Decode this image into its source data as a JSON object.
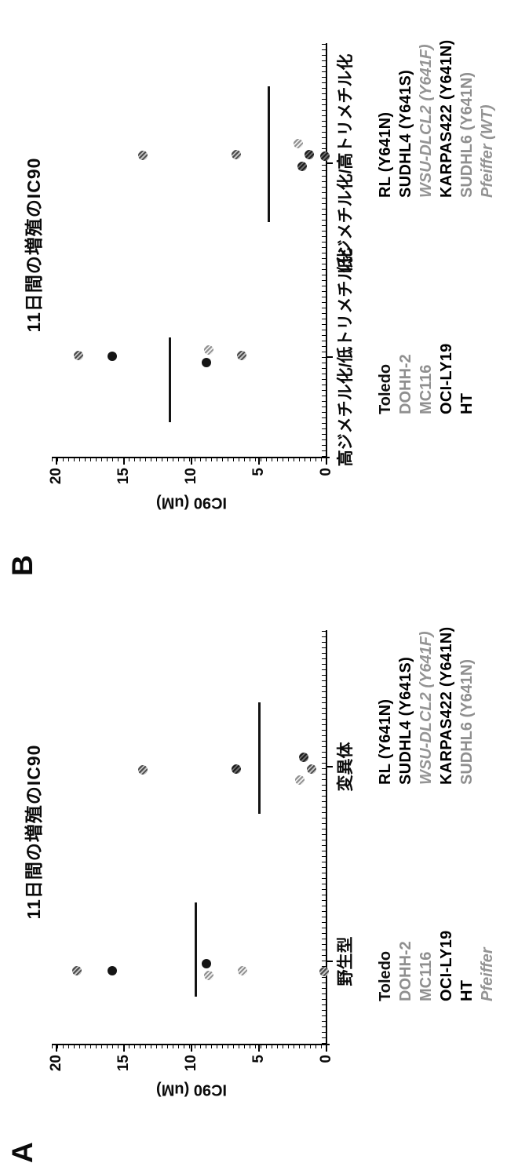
{
  "panels": [
    {
      "letter": "A"
    },
    {
      "letter": "B"
    }
  ],
  "colors": {
    "axis": "#000000",
    "marker_black": "#151515",
    "marker_gray": "#8a8a8a",
    "marker_light": "#c4c4c4",
    "legend_gray": "#8f8f8f"
  },
  "chart_data": [
    {
      "type": "scatter",
      "panel_label": "A",
      "title": "11日間の増殖のIC90",
      "ylabel": "IC90 (uM)",
      "ylim": [
        0,
        20
      ],
      "yticks": [
        0,
        5,
        10,
        15,
        20
      ],
      "grid": false,
      "groups": [
        {
          "category": "野生型",
          "mean": 9.7,
          "mean_span": [
            60,
            180
          ],
          "label_dx": 105,
          "legend_dx": 54,
          "points": [
            {
              "v": 18.5,
              "dx": 93,
              "shade": "gray"
            },
            {
              "v": 15.9,
              "dx": 93,
              "shade": "black"
            },
            {
              "v": 8.9,
              "dx": 102,
              "shade": "black"
            },
            {
              "v": 8.7,
              "dx": 87,
              "shade": "light"
            },
            {
              "v": 6.2,
              "dx": 93,
              "shade": "light"
            },
            {
              "v": 0.2,
              "dx": 92,
              "shade": "gray"
            }
          ],
          "legend": [
            {
              "text": "Toledo",
              "style": "black"
            },
            {
              "text": "DOHH-2",
              "style": "gray"
            },
            {
              "text": "MC116",
              "style": "gray"
            },
            {
              "text": "OCI-LY19",
              "style": "bold"
            },
            {
              "text": "HT",
              "style": "bold"
            },
            {
              "text": "Pfeiffer",
              "style": "italic"
            }
          ]
        },
        {
          "category": "変異体",
          "mean": 5.0,
          "mean_span": [
            293,
            435
          ],
          "label_dx": 353,
          "legend_dx": 330,
          "points": [
            {
              "v": 13.6,
              "dx": 349,
              "shade": "gray"
            },
            {
              "v": 6.7,
              "dx": 350,
              "shade": "dark"
            },
            {
              "v": 2.0,
              "dx": 336,
              "shade": "light"
            },
            {
              "v": 1.7,
              "dx": 365,
              "shade": "dark"
            },
            {
              "v": 1.1,
              "dx": 350,
              "shade": "gray"
            }
          ],
          "legend": [
            {
              "text": "RL (Y641N)",
              "style": "bold"
            },
            {
              "text": "SUDHL4 (Y641S)",
              "style": "bold"
            },
            {
              "text": "WSU-DLCL2 (Y641F)",
              "style": "italic"
            },
            {
              "text": "KARPAS422 (Y641N)",
              "style": "bold"
            },
            {
              "text": "SUDHL6 (Y641N)",
              "style": "gray"
            }
          ]
        }
      ]
    },
    {
      "type": "scatter",
      "panel_label": "B",
      "title": "11日間の増殖のIC90",
      "ylabel": "IC90 (uM)",
      "ylim": [
        0,
        20
      ],
      "yticks": [
        0,
        5,
        10,
        15,
        20
      ],
      "grid": false,
      "groups": [
        {
          "category": "高ジメチル化/低トリメチル化",
          "mean": 11.6,
          "mean_span": [
            44,
            152
          ],
          "label_dx": 127,
          "legend_dx": 54,
          "points": [
            {
              "v": 18.4,
              "dx": 129,
              "shade": "gray"
            },
            {
              "v": 15.9,
              "dx": 128,
              "shade": "black"
            },
            {
              "v": 8.9,
              "dx": 120,
              "shade": "black"
            },
            {
              "v": 8.7,
              "dx": 136,
              "shade": "light"
            },
            {
              "v": 6.3,
              "dx": 129,
              "shade": "gray"
            }
          ],
          "legend": [
            {
              "text": "Toledo",
              "style": "black"
            },
            {
              "text": "DOHH-2",
              "style": "gray"
            },
            {
              "text": "MC116",
              "style": "gray"
            },
            {
              "text": "OCI-LY19",
              "style": "bold"
            },
            {
              "text": "HT",
              "style": "bold"
            }
          ]
        },
        {
          "category": "低ジメチル化/高トリメチル化",
          "mean": 4.3,
          "mean_span": [
            299,
            472
          ],
          "label_dx": 374,
          "legend_dx": 330,
          "points": [
            {
              "v": 13.6,
              "dx": 384,
              "shade": "gray"
            },
            {
              "v": 6.7,
              "dx": 385,
              "shade": "gray"
            },
            {
              "v": 2.1,
              "dx": 399,
              "shade": "light"
            },
            {
              "v": 1.8,
              "dx": 370,
              "shade": "dark"
            },
            {
              "v": 1.3,
              "dx": 385,
              "shade": "dark"
            },
            {
              "v": 0.1,
              "dx": 383,
              "shade": "dark"
            }
          ],
          "legend": [
            {
              "text": "RL (Y641N)",
              "style": "bold"
            },
            {
              "text": "SUDHL4 (Y641S)",
              "style": "bold"
            },
            {
              "text": "WSU-DLCL2 (Y641F)",
              "style": "italic"
            },
            {
              "text": "KARPAS422 (Y641N)",
              "style": "bold"
            },
            {
              "text": "SUDHL6 (Y641N)",
              "style": "gray"
            },
            {
              "text": "Pfeiffer (WT)",
              "style": "italic"
            }
          ]
        }
      ]
    }
  ]
}
